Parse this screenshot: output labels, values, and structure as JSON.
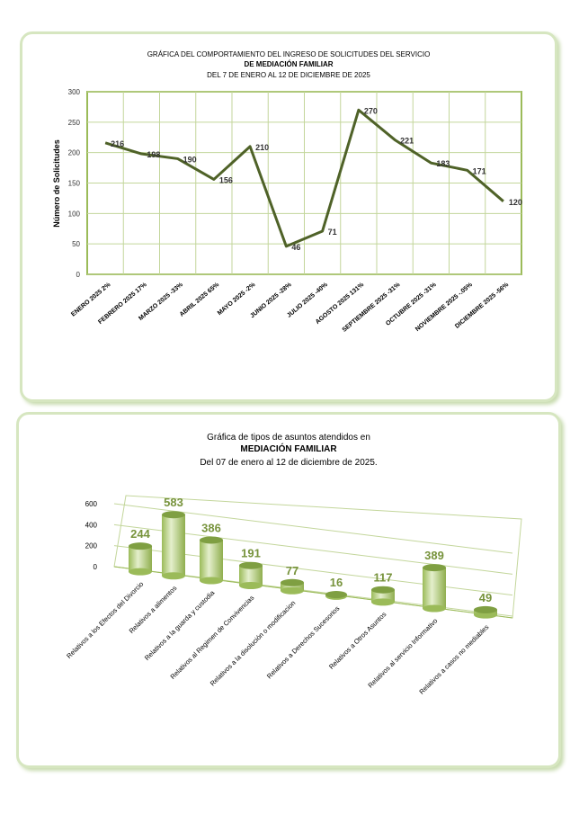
{
  "chart_data": [
    {
      "type": "line",
      "title_lines": [
        "GRÁFICA DEL COMPORTAMIENTO DEL  INGRESO DE SOLICITUDES DEL SERVICIO",
        "DE MEDIACIÓN FAMILIAR",
        "DEL  7  DE  ENERO AL  12 DE  DICIEMBRE DE 2025"
      ],
      "ylabel": "Número de Solicitudes",
      "ylim": [
        0,
        300
      ],
      "yticks": [
        0,
        50,
        100,
        150,
        200,
        250,
        300
      ],
      "categories": [
        "ENERO  2025   2%",
        "FEBRERO 2025    17%",
        "MARZO 2025     -33%",
        "ABRIL 2025 65%",
        "MAYO    2025     -2%",
        "JUNIO   2025   -28%",
        "JULIO 2025  -40%",
        "AGOSTO    2025    131%",
        "SEPTIEMBRE  2025   -31%",
        "OCTUBRE    2025   -31%",
        "NOVIEMBRE 2025      -.05%",
        "DICIEMBRE 2025      -56%"
      ],
      "values": [
        216,
        198,
        190,
        156,
        210,
        46,
        71,
        270,
        221,
        183,
        171,
        120
      ],
      "color": "#4f6228",
      "grid": true
    },
    {
      "type": "bar",
      "style": "3d-cylinder",
      "title_lines": [
        "Gráfica de tipos de asuntos atendidos en",
        "MEDIACIÓN FAMILIAR",
        "Del  07 de enero al  12 de  diciembre de 2025."
      ],
      "ylim": [
        0,
        600
      ],
      "yticks": [
        0,
        200,
        400,
        600
      ],
      "categories": [
        "Relativos a los Efectos del Divorcio",
        "Relativos a alimentos",
        "Relativos a la guarda y custodia",
        "Relativos al Regimen de Convivencias",
        "Relativos a la disolución o modificacion",
        "Relativos a Derechos Sucesorios",
        "Relativos a Otros Asuntos",
        "Relativos al servicio Informativo",
        "Relativos a casos no mediables"
      ],
      "values": [
        244,
        583,
        386,
        191,
        77,
        16,
        117,
        389,
        49
      ],
      "color": "#c4d79b",
      "label_color": "#77933c"
    }
  ]
}
